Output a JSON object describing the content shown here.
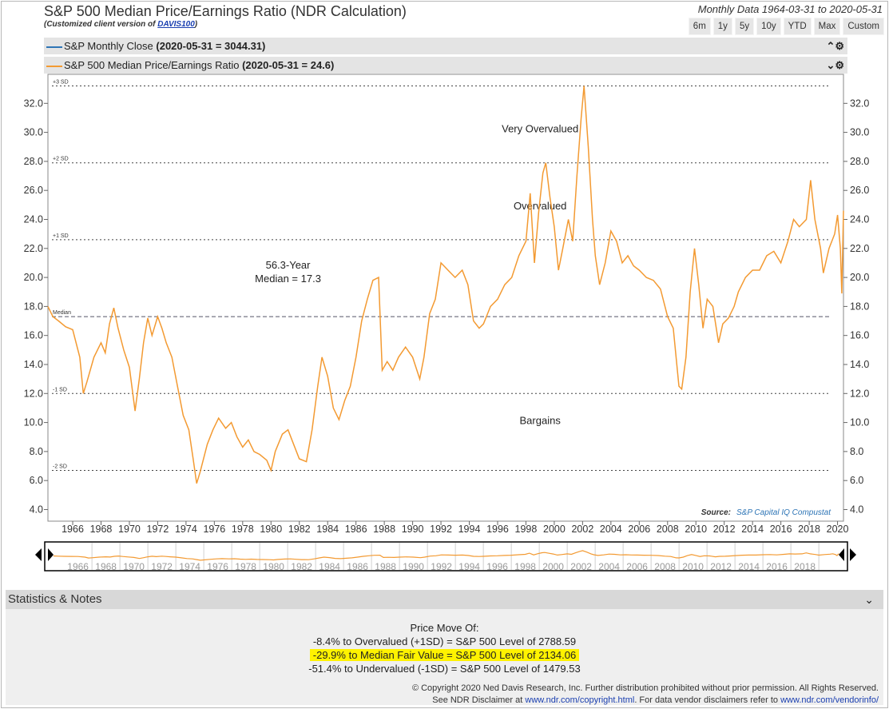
{
  "header": {
    "title": "S&P 500 Median Price/Earnings Ratio (NDR Calculation)",
    "subtitle_prefix": "(Customized client version of ",
    "subtitle_link": "DAVIS100",
    "subtitle_suffix": ")",
    "data_range": "Monthly Data 1964-03-31 to 2020-05-31",
    "range_buttons": [
      "6m",
      "1y",
      "5y",
      "10y",
      "YTD",
      "Max",
      "Custom"
    ]
  },
  "legend": [
    {
      "label": "S&P Monthly Close",
      "value": "(2020-05-31 = 3044.31)",
      "color": "#2e75b6",
      "ctrl": "⌃⚙"
    },
    {
      "label": "S&P 500 Median Price/Earnings Ratio",
      "value": "(2020-05-31 = 24.6)",
      "color": "#f39a32",
      "ctrl": "⌄⚙"
    }
  ],
  "chart_data": {
    "type": "line",
    "yticks": [
      4.0,
      6.0,
      8.0,
      10.0,
      12.0,
      14.0,
      16.0,
      18.0,
      20.0,
      22.0,
      24.0,
      26.0,
      28.0,
      30.0,
      32.0
    ],
    "ylim": [
      3.2,
      34.0
    ],
    "xlim": [
      1964.25,
      2020.42
    ],
    "xticks": [
      "1966",
      "1968",
      "1970",
      "1972",
      "1974",
      "1976",
      "1978",
      "1980",
      "1982",
      "1984",
      "1986",
      "1988",
      "1990",
      "1992",
      "1994",
      "1996",
      "1998",
      "2000",
      "2002",
      "2004",
      "2006",
      "2008",
      "2010",
      "2012",
      "2014",
      "2016",
      "2018",
      "2020"
    ],
    "reference_lines": [
      {
        "label": "+3 SD",
        "y": 33.2
      },
      {
        "label": "+2 SD",
        "y": 27.9
      },
      {
        "label": "+1 SD",
        "y": 22.6
      },
      {
        "label": "Median",
        "y": 17.3
      },
      {
        "label": "-1 SD",
        "y": 12.0
      },
      {
        "label": "-2 SD",
        "y": 6.7
      }
    ],
    "zone_labels": [
      {
        "text": "Very Overvalued",
        "x": 1999.0,
        "y": 30.0
      },
      {
        "text": "Overvalued",
        "x": 1999.0,
        "y": 24.7
      },
      {
        "text": "Bargains",
        "x": 1999.0,
        "y": 9.9
      }
    ],
    "median_note": [
      "56.3-Year",
      "Median = 17.3"
    ],
    "median_note_pos": {
      "x": 1981.2,
      "y": 20.6
    },
    "source_label": "Source:",
    "source_value": "S&P Capital IQ Compustat",
    "series": [
      {
        "name": "S&P 500 Median Price/Earnings Ratio",
        "color": "#f39a32",
        "points": [
          [
            1964.25,
            18.0
          ],
          [
            1964.6,
            17.3
          ],
          [
            1965.0,
            17.0
          ],
          [
            1965.5,
            16.6
          ],
          [
            1966.0,
            16.4
          ],
          [
            1966.5,
            14.5
          ],
          [
            1966.75,
            12.0
          ],
          [
            1967.0,
            12.8
          ],
          [
            1967.5,
            14.5
          ],
          [
            1968.0,
            15.5
          ],
          [
            1968.3,
            14.8
          ],
          [
            1968.6,
            16.8
          ],
          [
            1968.9,
            17.9
          ],
          [
            1969.2,
            16.5
          ],
          [
            1969.6,
            15.0
          ],
          [
            1970.0,
            13.8
          ],
          [
            1970.4,
            10.8
          ],
          [
            1970.7,
            13.0
          ],
          [
            1971.0,
            15.5
          ],
          [
            1971.3,
            17.2
          ],
          [
            1971.6,
            16.0
          ],
          [
            1972.0,
            17.3
          ],
          [
            1972.3,
            16.5
          ],
          [
            1972.6,
            15.5
          ],
          [
            1973.0,
            14.5
          ],
          [
            1973.4,
            12.5
          ],
          [
            1973.8,
            10.5
          ],
          [
            1974.2,
            9.5
          ],
          [
            1974.5,
            7.5
          ],
          [
            1974.75,
            5.8
          ],
          [
            1975.0,
            6.6
          ],
          [
            1975.5,
            8.5
          ],
          [
            1975.9,
            9.5
          ],
          [
            1976.3,
            10.3
          ],
          [
            1976.8,
            9.6
          ],
          [
            1977.2,
            10.0
          ],
          [
            1977.6,
            9.0
          ],
          [
            1978.0,
            8.3
          ],
          [
            1978.4,
            8.8
          ],
          [
            1978.8,
            8.0
          ],
          [
            1979.2,
            7.8
          ],
          [
            1979.7,
            7.4
          ],
          [
            1980.0,
            6.7
          ],
          [
            1980.3,
            8.0
          ],
          [
            1980.8,
            9.2
          ],
          [
            1981.2,
            9.5
          ],
          [
            1981.6,
            8.5
          ],
          [
            1982.0,
            7.5
          ],
          [
            1982.5,
            7.3
          ],
          [
            1982.9,
            9.5
          ],
          [
            1983.3,
            12.5
          ],
          [
            1983.6,
            14.5
          ],
          [
            1984.0,
            13.2
          ],
          [
            1984.4,
            11.0
          ],
          [
            1984.8,
            10.2
          ],
          [
            1985.2,
            11.5
          ],
          [
            1985.6,
            12.5
          ],
          [
            1986.0,
            14.5
          ],
          [
            1986.4,
            17.0
          ],
          [
            1986.8,
            18.5
          ],
          [
            1987.2,
            19.8
          ],
          [
            1987.6,
            20.0
          ],
          [
            1987.85,
            13.6
          ],
          [
            1988.2,
            14.2
          ],
          [
            1988.6,
            13.6
          ],
          [
            1989.0,
            14.5
          ],
          [
            1989.5,
            15.2
          ],
          [
            1990.0,
            14.5
          ],
          [
            1990.5,
            13.0
          ],
          [
            1990.8,
            14.5
          ],
          [
            1991.2,
            17.5
          ],
          [
            1991.6,
            18.5
          ],
          [
            1992.0,
            21.0
          ],
          [
            1992.5,
            20.5
          ],
          [
            1993.0,
            20.0
          ],
          [
            1993.5,
            20.5
          ],
          [
            1993.9,
            19.5
          ],
          [
            1994.3,
            17.0
          ],
          [
            1994.7,
            16.5
          ],
          [
            1995.0,
            16.8
          ],
          [
            1995.5,
            18.0
          ],
          [
            1996.0,
            18.5
          ],
          [
            1996.5,
            19.5
          ],
          [
            1997.0,
            20.0
          ],
          [
            1997.5,
            21.5
          ],
          [
            1998.0,
            22.5
          ],
          [
            1998.3,
            25.8
          ],
          [
            1998.6,
            21.0
          ],
          [
            1998.9,
            24.5
          ],
          [
            1999.2,
            27.2
          ],
          [
            1999.4,
            27.9
          ],
          [
            1999.7,
            25.5
          ],
          [
            2000.0,
            23.5
          ],
          [
            2000.3,
            20.5
          ],
          [
            2000.6,
            22.0
          ],
          [
            2001.0,
            24.0
          ],
          [
            2001.3,
            22.5
          ],
          [
            2001.6,
            27.0
          ],
          [
            2001.9,
            31.0
          ],
          [
            2002.1,
            33.2
          ],
          [
            2002.4,
            29.0
          ],
          [
            2002.7,
            24.0
          ],
          [
            2002.9,
            21.5
          ],
          [
            2003.2,
            19.5
          ],
          [
            2003.6,
            21.0
          ],
          [
            2004.0,
            23.2
          ],
          [
            2004.4,
            22.5
          ],
          [
            2004.8,
            21.0
          ],
          [
            2005.2,
            21.5
          ],
          [
            2005.6,
            20.8
          ],
          [
            2006.0,
            20.5
          ],
          [
            2006.5,
            20.0
          ],
          [
            2007.0,
            19.8
          ],
          [
            2007.5,
            19.2
          ],
          [
            2008.0,
            17.3
          ],
          [
            2008.4,
            16.5
          ],
          [
            2008.8,
            12.5
          ],
          [
            2009.0,
            12.3
          ],
          [
            2009.3,
            14.5
          ],
          [
            2009.6,
            19.0
          ],
          [
            2009.9,
            22.0
          ],
          [
            2010.2,
            19.5
          ],
          [
            2010.5,
            16.5
          ],
          [
            2010.8,
            18.5
          ],
          [
            2011.2,
            18.0
          ],
          [
            2011.6,
            15.5
          ],
          [
            2011.9,
            16.8
          ],
          [
            2012.3,
            17.2
          ],
          [
            2012.7,
            18.0
          ],
          [
            2013.0,
            19.0
          ],
          [
            2013.5,
            20.0
          ],
          [
            2014.0,
            20.5
          ],
          [
            2014.5,
            20.5
          ],
          [
            2015.0,
            21.5
          ],
          [
            2015.5,
            21.8
          ],
          [
            2016.0,
            21.0
          ],
          [
            2016.5,
            22.5
          ],
          [
            2016.9,
            24.0
          ],
          [
            2017.3,
            23.5
          ],
          [
            2017.8,
            24.0
          ],
          [
            2018.1,
            26.7
          ],
          [
            2018.4,
            24.0
          ],
          [
            2018.8,
            22.0
          ],
          [
            2019.0,
            20.3
          ],
          [
            2019.4,
            22.0
          ],
          [
            2019.8,
            23.0
          ],
          [
            2020.0,
            24.3
          ],
          [
            2020.2,
            22.0
          ],
          [
            2020.3,
            18.9
          ],
          [
            2020.42,
            24.6
          ]
        ]
      }
    ],
    "navigator": {
      "xticks": [
        "1966",
        "1968",
        "1970",
        "1972",
        "1974",
        "1976",
        "1978",
        "1980",
        "1982",
        "1984",
        "1986",
        "1988",
        "1990",
        "1992",
        "1994",
        "1996",
        "1998",
        "2000",
        "2002",
        "2004",
        "2006",
        "2008",
        "2010",
        "2012",
        "2014",
        "2016",
        "2018"
      ]
    }
  },
  "stats": {
    "section_title": "Statistics & Notes",
    "heading": "Price Move Of:",
    "lines": [
      "-8.4% to Overvalued (+1SD) = S&P 500 Level of 2788.59",
      "-29.9% to Median Fair Value = S&P 500 Level of 2134.06",
      "-51.4% to Undervalued (-1SD) = S&P 500 Level of 1479.53"
    ],
    "highlight_color": "#fff200",
    "copyright_1": "© Copyright 2020 Ned Davis Research, Inc. Further distribution prohibited without prior permission. All Rights Reserved.",
    "copyright_2_prefix": "See NDR Disclaimer at ",
    "copyright_2_link1": "www.ndr.com/copyright.html",
    "copyright_2_middle": ". For data vendor disclaimers refer to ",
    "copyright_2_link2": "www.ndr.com/vendorinfo/"
  }
}
